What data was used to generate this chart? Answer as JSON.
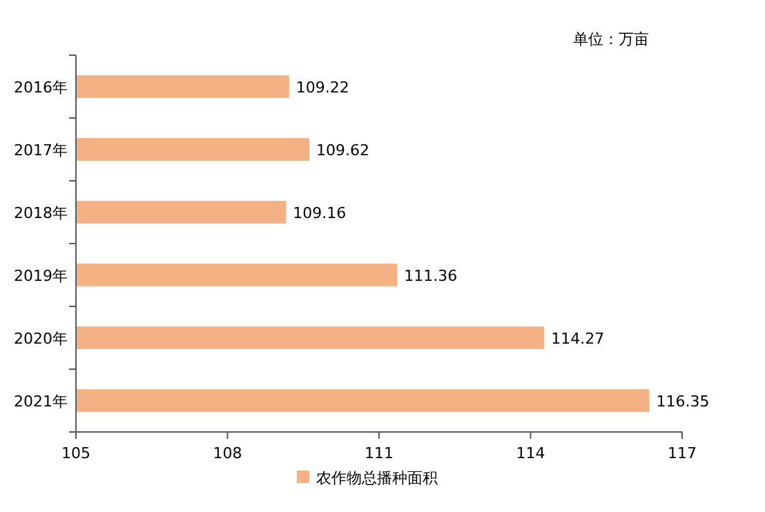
{
  "chart_data": {
    "type": "bar",
    "orientation": "horizontal",
    "categories": [
      "2016年",
      "2017年",
      "2018年",
      "2019年",
      "2020年",
      "2021年"
    ],
    "series": [
      {
        "name": "农作物总播种面积",
        "color": "#f4b183",
        "values": [
          109.22,
          109.62,
          109.16,
          111.36,
          114.27,
          116.35
        ]
      }
    ],
    "xlim": [
      105,
      117
    ],
    "xticks": [
      105,
      108,
      111,
      114,
      117
    ],
    "data_labels": true,
    "legend": "bottom",
    "grid": false,
    "annotations": [
      "单位：万亩"
    ]
  }
}
